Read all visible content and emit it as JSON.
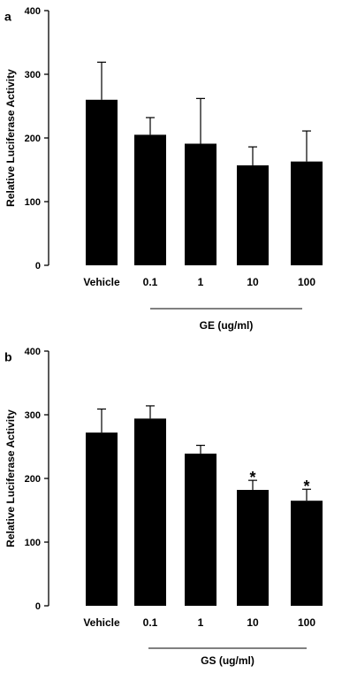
{
  "chart_data": [
    {
      "panel_label": "a",
      "type": "bar",
      "ylabel": "Relative Luciferase Activity",
      "ylim": [
        0,
        400
      ],
      "yticks": [
        "0",
        "100",
        "200",
        "300",
        "400"
      ],
      "categories": [
        "Vehicle",
        "0.1",
        "1",
        "10",
        "100"
      ],
      "values": [
        260,
        205,
        191,
        157,
        163
      ],
      "errors": [
        59,
        27,
        71,
        29,
        48
      ],
      "significance": [
        "",
        "",
        "",
        "",
        ""
      ],
      "group_label": "GE (ug/ml)",
      "bar_color": "#000000"
    },
    {
      "panel_label": "b",
      "type": "bar",
      "ylabel": "Relative Luciferase Activity",
      "ylim": [
        0,
        400
      ],
      "yticks": [
        "0",
        "100",
        "200",
        "300",
        "400"
      ],
      "categories": [
        "Vehicle",
        "0.1",
        "1",
        "10",
        "100"
      ],
      "values": [
        272,
        294,
        239,
        182,
        165
      ],
      "errors": [
        37,
        20,
        13,
        15,
        18
      ],
      "significance": [
        "",
        "",
        "",
        "*",
        "*"
      ],
      "group_label": "GS (ug/ml)",
      "bar_color": "#000000"
    }
  ]
}
